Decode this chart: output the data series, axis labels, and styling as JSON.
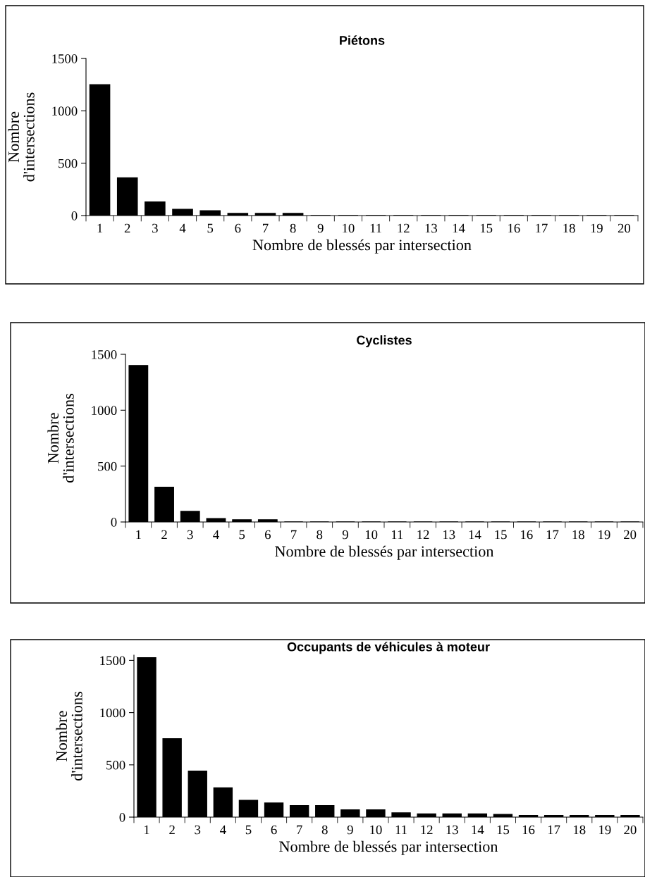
{
  "chart_data": [
    {
      "type": "bar",
      "title": "Piétons",
      "xlabel": "Nombre de blessés par intersection",
      "ylabel": "Nombre\nd'intersections",
      "categories": [
        "1",
        "2",
        "3",
        "4",
        "5",
        "6",
        "7",
        "8",
        "9",
        "10",
        "11",
        "12",
        "13",
        "14",
        "15",
        "16",
        "17",
        "18",
        "19",
        "20"
      ],
      "values": [
        1250,
        360,
        130,
        60,
        45,
        20,
        20,
        20,
        0,
        0,
        0,
        0,
        0,
        0,
        0,
        0,
        0,
        0,
        0,
        0
      ],
      "color": "#000000",
      "ylim": [
        0,
        1500
      ],
      "yticks": [
        0,
        500,
        1000,
        1500
      ],
      "grid": false,
      "legend": false
    },
    {
      "type": "bar",
      "title": "Cyclistes",
      "xlabel": "Nombre de blessés par intersection",
      "ylabel": "Nombre\nd'intersections",
      "categories": [
        "1",
        "2",
        "3",
        "4",
        "5",
        "6",
        "7",
        "8",
        "9",
        "10",
        "11",
        "12",
        "13",
        "14",
        "15",
        "16",
        "17",
        "18",
        "19",
        "20"
      ],
      "values": [
        1400,
        310,
        95,
        30,
        20,
        20,
        0,
        0,
        0,
        0,
        0,
        0,
        0,
        0,
        0,
        0,
        0,
        0,
        0,
        0
      ],
      "color": "#000000",
      "ylim": [
        0,
        1500
      ],
      "yticks": [
        0,
        500,
        1000,
        1500
      ],
      "grid": false,
      "legend": false
    },
    {
      "type": "bar",
      "title": "Occupants de véhicules à moteur",
      "xlabel": "Nombre de blessés par intersection",
      "ylabel": "Nombre\nd'intersections",
      "categories": [
        "1",
        "2",
        "3",
        "4",
        "5",
        "6",
        "7",
        "8",
        "9",
        "10",
        "11",
        "12",
        "13",
        "14",
        "15",
        "16",
        "17",
        "18",
        "19",
        "20"
      ],
      "values": [
        1525,
        750,
        440,
        280,
        160,
        135,
        110,
        110,
        70,
        70,
        40,
        30,
        30,
        30,
        25,
        15,
        15,
        15,
        15,
        15
      ],
      "color": "#000000",
      "ylim": [
        0,
        1550
      ],
      "yticks": [
        0,
        500,
        1000,
        1500
      ],
      "grid": false,
      "legend": false
    }
  ]
}
